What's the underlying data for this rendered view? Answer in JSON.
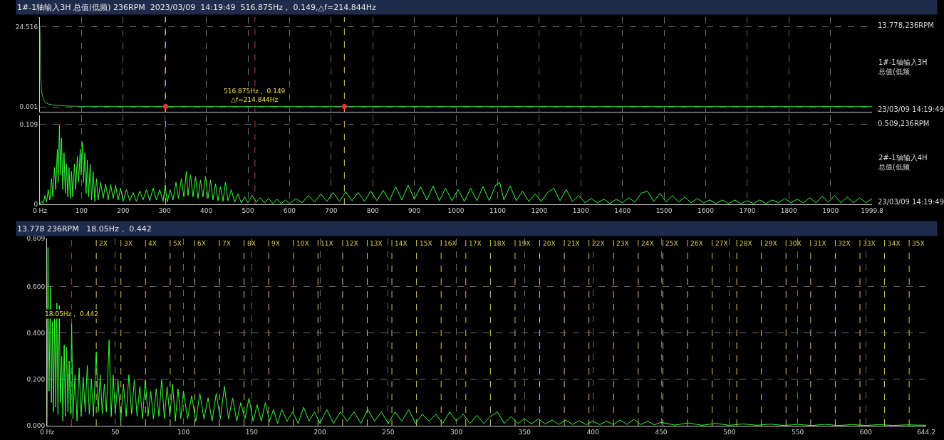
{
  "chart_data": [
    {
      "type": "line",
      "title": "1#-1轴输入3H 总值(低频) 236RPM  2023/03/09  14:19:49  516.875Hz， 0.149,△f=214.844Hz",
      "xlim": [
        0,
        1999.8
      ],
      "ylim": [
        -1.5,
        27.5
      ],
      "yticks": [
        24.516,
        0.001
      ],
      "xticks": [
        100,
        200,
        300,
        400,
        500,
        600,
        700,
        800,
        900,
        1000,
        1100,
        1200,
        1300,
        1400,
        1500,
        1600,
        1700,
        1800,
        1900
      ],
      "grid": true,
      "tick_labels": "y",
      "series": [
        {
          "type": "line",
          "color": "#40c040",
          "x": [
            0,
            1,
            2,
            4,
            6,
            8,
            11,
            15,
            20,
            30,
            45,
            60,
            80,
            100,
            150,
            200,
            302.031,
            400,
            516.875,
            600,
            731.719,
            800,
            1000,
            1200,
            1400,
            1600,
            1800,
            1999.8
          ],
          "values": [
            24.5,
            18,
            9,
            5,
            3.5,
            2.5,
            1.8,
            1.2,
            0.9,
            0.6,
            0.4,
            0.3,
            0.2,
            0.17,
            0.155,
            0.15,
            0.149,
            0.149,
            0.149,
            0.149,
            0.149,
            0.149,
            0.149,
            0.149,
            0.149,
            0.149,
            0.149,
            0.149
          ]
        },
        {
          "type": "scatter",
          "color": "#ff3030",
          "x": [
            302.031,
            731.719
          ],
          "values": [
            0.149,
            0.149
          ]
        }
      ],
      "ref_lines": [
        {
          "axis": "x",
          "value": 302.031,
          "color": "#d8c850",
          "line_style": "dashed"
        },
        {
          "axis": "x",
          "value": 516.875,
          "color": "#d03030",
          "line_style": "dashed"
        },
        {
          "axis": "x",
          "value": 731.719,
          "color": "#d8c850",
          "line_style": "dashed"
        }
      ],
      "annotations": [
        {
          "text": "516.875Hz， 0.149\n△f=214.844Hz",
          "x": 516.875
        },
        "13.778,236RPM",
        "1#-1轴输入3H 总值(低频",
        "23/03/09 14:19:49"
      ]
    },
    {
      "type": "line",
      "xlim": [
        0,
        1999.8
      ],
      "ylim": [
        0,
        0.121
      ],
      "yticks": [
        0.109,
        0
      ],
      "xticks": [
        {
          "value": 0,
          "label": "0 Hz"
        },
        100,
        200,
        300,
        400,
        500,
        600,
        700,
        800,
        900,
        1000,
        1100,
        1200,
        1300,
        1400,
        1500,
        1600,
        1700,
        1800,
        1900,
        1999.8
      ],
      "grid": true,
      "x": [
        0,
        4,
        8,
        12,
        16,
        20,
        24,
        28,
        31,
        35,
        38,
        42,
        44,
        47,
        49,
        52,
        55,
        58,
        61,
        64,
        67,
        70,
        73,
        76,
        79,
        83,
        86,
        90,
        93,
        97,
        99,
        102,
        105,
        108,
        111,
        114,
        117,
        121,
        124,
        128,
        132,
        136,
        140,
        146,
        152,
        158,
        164,
        170,
        176,
        182,
        188,
        194,
        200,
        208,
        216,
        224,
        232,
        240,
        248,
        256,
        264,
        272,
        280,
        288,
        296,
        301,
        306,
        313,
        320,
        327,
        333,
        340,
        346,
        352,
        356,
        362,
        368,
        374,
        380,
        386,
        392,
        398,
        404,
        410,
        416,
        422,
        428,
        434,
        440,
        446,
        452,
        460,
        468,
        476,
        484,
        492,
        500,
        510,
        520,
        530,
        540,
        550,
        560,
        570,
        580,
        590,
        600,
        615,
        630,
        645,
        660,
        675,
        690,
        705,
        720,
        735,
        750,
        765,
        780,
        795,
        810,
        825,
        840,
        855,
        870,
        885,
        900,
        915,
        930,
        945,
        960,
        975,
        990,
        1005,
        1020,
        1035,
        1050,
        1065,
        1080,
        1095,
        1105,
        1115,
        1130,
        1145,
        1160,
        1175,
        1190,
        1205,
        1220,
        1235,
        1250,
        1265,
        1280,
        1295,
        1310,
        1325,
        1340,
        1355,
        1370,
        1385,
        1400,
        1415,
        1430,
        1445,
        1460,
        1475,
        1490,
        1505,
        1520,
        1535,
        1550,
        1565,
        1580,
        1595,
        1610,
        1625,
        1640,
        1655,
        1670,
        1685,
        1700,
        1715,
        1730,
        1745,
        1760,
        1775,
        1790,
        1805,
        1820,
        1835,
        1850,
        1865,
        1880,
        1895,
        1910,
        1925,
        1940,
        1955,
        1970,
        1985,
        1999.8
      ],
      "series": [
        {
          "color": "#33ff33",
          "values": [
            0,
            0.004,
            0.001,
            0.012,
            0.003,
            0.02,
            0.006,
            0.035,
            0.01,
            0.05,
            0.02,
            0.075,
            0.03,
            0.108,
            0.04,
            0.09,
            0.02,
            0.07,
            0.015,
            0.055,
            0.01,
            0.05,
            0.008,
            0.045,
            0.01,
            0.055,
            0.02,
            0.065,
            0.03,
            0.075,
            0.04,
            0.085,
            0.03,
            0.07,
            0.015,
            0.06,
            0.01,
            0.055,
            0.006,
            0.045,
            0.004,
            0.035,
            0.006,
            0.03,
            0.008,
            0.028,
            0.006,
            0.027,
            0.008,
            0.026,
            0.006,
            0.022,
            0.004,
            0.02,
            0.005,
            0.016,
            0.004,
            0.018,
            0.006,
            0.02,
            0.005,
            0.022,
            0.006,
            0.02,
            0.004,
            0.025,
            0.003,
            0.02,
            0.006,
            0.03,
            0.008,
            0.035,
            0.01,
            0.045,
            0.012,
            0.04,
            0.01,
            0.038,
            0.008,
            0.033,
            0.01,
            0.038,
            0.008,
            0.033,
            0.006,
            0.028,
            0.005,
            0.024,
            0.004,
            0.03,
            0.005,
            0.02,
            0.003,
            0.014,
            0.002,
            0.01,
            0.002,
            0.012,
            0.003,
            0.009,
            0.002,
            0.008,
            0.001,
            0.007,
            0.001,
            0.006,
            0.001,
            0.008,
            0.002,
            0.012,
            0.003,
            0.014,
            0.004,
            0.016,
            0.004,
            0.017,
            0.005,
            0.016,
            0.004,
            0.018,
            0.005,
            0.019,
            0.005,
            0.024,
            0.006,
            0.026,
            0.007,
            0.024,
            0.006,
            0.025,
            0.005,
            0.022,
            0.005,
            0.02,
            0.004,
            0.022,
            0.005,
            0.024,
            0.005,
            0.026,
            0.03,
            0.006,
            0.025,
            0.005,
            0.018,
            0.004,
            0.014,
            0.004,
            0.016,
            0.022,
            0.005,
            0.02,
            0.004,
            0.012,
            0.002,
            0.008,
            0.002,
            0.007,
            0.001,
            0.007,
            0.002,
            0.009,
            0.003,
            0.015,
            0.018,
            0.004,
            0.015,
            0.003,
            0.012,
            0.003,
            0.01,
            0.002,
            0.008,
            0.002,
            0.006,
            0.001,
            0.006,
            0.001,
            0.006,
            0.001,
            0.005,
            0.001,
            0.006,
            0.001,
            0.006,
            0.002,
            0.008,
            0.002,
            0.007,
            0.002,
            0.009,
            0.002,
            0.011,
            0.003,
            0.012,
            0.002,
            0.01,
            0.002,
            0.009,
            0.002,
            0.008
          ]
        }
      ],
      "ref_lines": [
        {
          "axis": "x",
          "value": 302.031,
          "color": "#d8c850",
          "line_style": "dashed"
        },
        {
          "axis": "x",
          "value": 516.875,
          "color": "#d03030",
          "line_style": "dashed"
        },
        {
          "axis": "x",
          "value": 731.719,
          "color": "#d8c850",
          "line_style": "dashed"
        }
      ],
      "annotations": [
        "0.509,236RPM",
        "2#-1轴输入4H 总值(低频",
        "23/03/09 14:19:49"
      ]
    },
    {
      "type": "line",
      "title": "13.778 236RPM   18.05Hz， 0.442",
      "xlim": [
        0,
        644.2
      ],
      "ylim": [
        0,
        0.809
      ],
      "yticks": [
        {
          "value": 0,
          "label": "0.000"
        },
        {
          "value": 0.2,
          "label": "0.200"
        },
        {
          "value": 0.4,
          "label": "0.400"
        },
        {
          "value": 0.6,
          "label": "0.600"
        },
        0.809
      ],
      "xticks": [
        {
          "value": 0,
          "label": "0 Hz"
        },
        50,
        100,
        150,
        200,
        250,
        300,
        350,
        400,
        450,
        500,
        550,
        600,
        644.2
      ],
      "grid": true,
      "x": [
        0,
        0.7,
        1.5,
        2.5,
        3.2,
        4,
        4.8,
        5.6,
        6.4,
        7.2,
        8,
        9,
        9.8,
        10.8,
        11.6,
        12.6,
        13.4,
        14.4,
        15.3,
        16.2,
        17.1,
        18.05,
        19,
        20.5,
        22,
        23.5,
        25,
        26.5,
        28,
        29.5,
        31,
        32.5,
        34,
        36.1,
        37.5,
        39,
        40.5,
        42,
        43.5,
        45.5,
        47,
        48.5,
        50,
        52,
        54,
        56,
        58,
        60,
        62,
        64,
        66,
        68,
        70,
        72,
        74,
        76,
        78,
        80,
        82,
        84,
        86,
        88,
        90,
        92,
        94,
        96,
        98,
        100,
        103,
        106,
        109,
        112,
        115,
        118,
        121,
        124,
        127,
        130,
        133,
        136,
        139,
        142,
        145,
        148,
        151,
        154,
        157,
        160,
        163,
        166,
        169,
        172,
        176,
        180,
        184,
        188,
        192,
        196,
        200,
        205,
        210,
        215,
        220,
        225,
        230,
        235,
        240,
        245,
        250,
        255,
        260,
        265,
        270,
        275,
        280,
        285,
        290,
        295,
        300,
        305,
        310,
        315,
        320,
        325,
        330,
        335,
        340,
        345,
        350,
        355,
        360,
        365,
        370,
        375,
        380,
        385,
        390,
        395,
        400,
        405,
        410,
        415,
        420,
        425,
        430,
        435,
        440,
        445,
        450,
        460,
        470,
        480,
        490,
        500,
        510,
        520,
        530,
        540,
        550,
        560,
        570,
        580,
        590,
        600,
        610,
        620,
        630,
        644.2
      ],
      "series": [
        {
          "color": "#33ff33",
          "values": [
            0,
            0.77,
            0.15,
            0.6,
            0.1,
            0.45,
            0.06,
            0.5,
            0.08,
            0.53,
            0.05,
            0.52,
            0.1,
            0.3,
            0.02,
            0.35,
            0.04,
            0.34,
            0.06,
            0.28,
            0.05,
            0.442,
            0.03,
            0.22,
            0.02,
            0.25,
            0.04,
            0.21,
            0.06,
            0.26,
            0.05,
            0.2,
            0.04,
            0.32,
            0.06,
            0.22,
            0.05,
            0.18,
            0.06,
            0.37,
            0.04,
            0.22,
            0.05,
            0.2,
            0.02,
            0.18,
            0.04,
            0.22,
            0.05,
            0.2,
            0.04,
            0.17,
            0.03,
            0.2,
            0.04,
            0.15,
            0.03,
            0.16,
            0.04,
            0.2,
            0.03,
            0.17,
            0.04,
            0.18,
            0.02,
            0.16,
            0.03,
            0.15,
            0.03,
            0.13,
            0.02,
            0.14,
            0.03,
            0.12,
            0.02,
            0.14,
            0.03,
            0.17,
            0.03,
            0.12,
            0.02,
            0.1,
            0.03,
            0.12,
            0.02,
            0.09,
            0.02,
            0.1,
            0.02,
            0.07,
            0.01,
            0.07,
            0.02,
            0.06,
            0.01,
            0.08,
            0.02,
            0.06,
            0.01,
            0.07,
            0.01,
            0.06,
            0.02,
            0.06,
            0.01,
            0.07,
            0.02,
            0.06,
            0.01,
            0.06,
            0.02,
            0.07,
            0.01,
            0.05,
            0.02,
            0.05,
            0.01,
            0.06,
            0.02,
            0.05,
            0.01,
            0.045,
            0.01,
            0.04,
            0.06,
            0.01,
            0.04,
            0.01,
            0.03,
            0.008,
            0.03,
            0.008,
            0.025,
            0.006,
            0.025,
            0.006,
            0.022,
            0.005,
            0.02,
            0.005,
            0.02,
            0.005,
            0.025,
            0.006,
            0.028,
            0.005,
            0.02,
            0.004,
            0.015,
            0.003,
            0.012,
            0.002,
            0.01,
            0.002,
            0.008,
            0.002,
            0.007,
            0.001,
            0.006,
            0.001,
            0.006,
            0.001,
            0.005,
            0.001,
            0.005,
            0.001,
            0.004,
            0.002
          ]
        }
      ],
      "ref_lines": [
        {
          "axis": "x",
          "value": 18.05,
          "color": "#d03030",
          "line_style": "dashed"
        },
        {
          "axis": "x",
          "value": 36.1,
          "label": "2X",
          "color": "#d8c850",
          "line_style": "dashed"
        },
        {
          "axis": "x",
          "value": 54.15,
          "label": "3X",
          "color": "#d8c850",
          "line_style": "dashed"
        },
        {
          "axis": "x",
          "value": 72.2,
          "label": "4X",
          "color": "#d8c850",
          "line_style": "dashed"
        },
        {
          "axis": "x",
          "value": 90.25,
          "label": "5X",
          "color": "#d8c850",
          "line_style": "dashed"
        },
        {
          "axis": "x",
          "value": 108.3,
          "label": "6X",
          "color": "#d8c850",
          "line_style": "dashed"
        },
        {
          "axis": "x",
          "value": 126.35,
          "label": "7X",
          "color": "#d8c850",
          "line_style": "dashed"
        },
        {
          "axis": "x",
          "value": 144.4,
          "label": "8X",
          "color": "#d8c850",
          "line_style": "dashed"
        },
        {
          "axis": "x",
          "value": 162.45,
          "label": "9X",
          "color": "#d8c850",
          "line_style": "dashed"
        },
        {
          "axis": "x",
          "value": 180.5,
          "label": "10X",
          "color": "#d8c850",
          "line_style": "dashed"
        },
        {
          "axis": "x",
          "value": 198.55,
          "label": "11X",
          "color": "#d8c850",
          "line_style": "dashed"
        },
        {
          "axis": "x",
          "value": 216.6,
          "label": "12X",
          "color": "#d8c850",
          "line_style": "dashed"
        },
        {
          "axis": "x",
          "value": 234.65,
          "label": "13X",
          "color": "#d8c850",
          "line_style": "dashed"
        },
        {
          "axis": "x",
          "value": 252.7,
          "label": "14X",
          "color": "#d8c850",
          "line_style": "dashed"
        },
        {
          "axis": "x",
          "value": 270.75,
          "label": "15X",
          "color": "#d8c850",
          "line_style": "dashed"
        },
        {
          "axis": "x",
          "value": 288.8,
          "label": "16X",
          "color": "#d8c850",
          "line_style": "dashed"
        },
        {
          "axis": "x",
          "value": 306.85,
          "label": "17X",
          "color": "#d8c850",
          "line_style": "dashed"
        },
        {
          "axis": "x",
          "value": 324.9,
          "label": "18X",
          "color": "#d8c850",
          "line_style": "dashed"
        },
        {
          "axis": "x",
          "value": 342.95,
          "label": "19X",
          "color": "#d8c850",
          "line_style": "dashed"
        },
        {
          "axis": "x",
          "value": 361,
          "label": "20X",
          "color": "#d8c850",
          "line_style": "dashed"
        },
        {
          "axis": "x",
          "value": 379.05,
          "label": "21X",
          "color": "#d8c850",
          "line_style": "dashed"
        },
        {
          "axis": "x",
          "value": 397.1,
          "label": "22X",
          "color": "#d8c850",
          "line_style": "dashed"
        },
        {
          "axis": "x",
          "value": 415.15,
          "label": "23X",
          "color": "#d8c850",
          "line_style": "dashed"
        },
        {
          "axis": "x",
          "value": 433.2,
          "label": "24X",
          "color": "#d8c850",
          "line_style": "dashed"
        },
        {
          "axis": "x",
          "value": 451.25,
          "label": "25X",
          "color": "#d8c850",
          "line_style": "dashed"
        },
        {
          "axis": "x",
          "value": 469.3,
          "label": "26X",
          "color": "#d8c850",
          "line_style": "dashed"
        },
        {
          "axis": "x",
          "value": 487.35,
          "label": "27X",
          "color": "#d8c850",
          "line_style": "dashed"
        },
        {
          "axis": "x",
          "value": 505.4,
          "label": "28X",
          "color": "#d8c850",
          "line_style": "dashed"
        },
        {
          "axis": "x",
          "value": 523.45,
          "label": "29X",
          "color": "#d8c850",
          "line_style": "dashed"
        },
        {
          "axis": "x",
          "value": 541.5,
          "label": "30X",
          "color": "#d8c850",
          "line_style": "dashed"
        },
        {
          "axis": "x",
          "value": 559.55,
          "label": "31X",
          "color": "#d8c850",
          "line_style": "dashed"
        },
        {
          "axis": "x",
          "value": 577.6,
          "label": "32X",
          "color": "#d8c850",
          "line_style": "dashed"
        },
        {
          "axis": "x",
          "value": 595.65,
          "label": "33X",
          "color": "#d8c850",
          "line_style": "dashed"
        },
        {
          "axis": "x",
          "value": 613.7,
          "label": "34X",
          "color": "#d8c850",
          "line_style": "dashed"
        },
        {
          "axis": "x",
          "value": 631.75,
          "label": "35X",
          "color": "#d8c850",
          "line_style": "dashed"
        }
      ],
      "annotations": [
        {
          "text": "18.05Hz， 0.442",
          "x": 18.05,
          "y": 0.442
        }
      ]
    }
  ]
}
